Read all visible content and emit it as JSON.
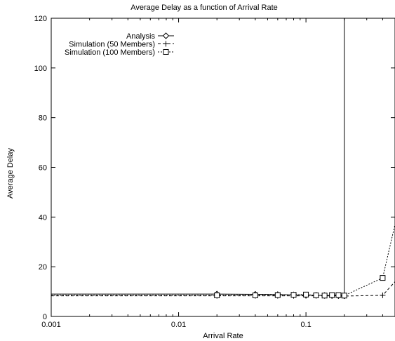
{
  "chart_data": {
    "type": "line",
    "title": "Average Delay as a function of Arrival Rate",
    "xlabel": "Arrival Rate",
    "ylabel": "Average Delay",
    "xscale": "log",
    "xlim": [
      0.001,
      0.5
    ],
    "ylim": [
      0,
      120
    ],
    "xticks": [
      {
        "value": 0.001,
        "label": "0.001"
      },
      {
        "value": 0.01,
        "label": "0.01"
      },
      {
        "value": 0.1,
        "label": "0.1"
      }
    ],
    "yticks": [
      {
        "value": 0,
        "label": "0"
      },
      {
        "value": 20,
        "label": "20"
      },
      {
        "value": 40,
        "label": "40"
      },
      {
        "value": 60,
        "label": "60"
      },
      {
        "value": 80,
        "label": "80"
      },
      {
        "value": 100,
        "label": "100"
      },
      {
        "value": 120,
        "label": "120"
      }
    ],
    "grid": false,
    "legend_position": "top-left",
    "series": [
      {
        "name": "Analysis",
        "line_style": "solid",
        "marker": "diamond",
        "x": [
          0.001,
          0.02,
          0.04,
          0.06,
          0.08,
          0.1,
          0.12,
          0.14,
          0.16,
          0.18,
          0.2,
          0.2
        ],
        "y": [
          9.0,
          9.0,
          8.9,
          8.8,
          8.7,
          8.6,
          8.5,
          8.45,
          8.4,
          8.35,
          8.3,
          120
        ],
        "markers_at": [
          1,
          2,
          3,
          4,
          5,
          6,
          7,
          8,
          9,
          10
        ]
      },
      {
        "name": "Simulation (50 Members)",
        "line_style": "dashed",
        "marker": "plus",
        "x": [
          0.001,
          0.02,
          0.04,
          0.06,
          0.08,
          0.1,
          0.12,
          0.14,
          0.16,
          0.18,
          0.2,
          0.4,
          0.5
        ],
        "y": [
          8.3,
          8.3,
          8.3,
          8.3,
          8.3,
          8.3,
          8.3,
          8.3,
          8.3,
          8.3,
          8.2,
          8.5,
          14
        ],
        "markers_at": [
          1,
          2,
          3,
          4,
          5,
          6,
          7,
          8,
          9,
          10,
          11
        ]
      },
      {
        "name": "Simulation (100 Members)",
        "line_style": "dotted",
        "marker": "square",
        "x": [
          0.001,
          0.02,
          0.04,
          0.06,
          0.08,
          0.1,
          0.12,
          0.14,
          0.16,
          0.18,
          0.2,
          0.4,
          0.5
        ],
        "y": [
          8.5,
          8.5,
          8.5,
          8.6,
          8.7,
          8.8,
          8.5,
          8.4,
          8.6,
          8.6,
          8.4,
          15.5,
          37
        ],
        "markers_at": [
          1,
          2,
          3,
          4,
          5,
          6,
          7,
          8,
          9,
          10,
          11
        ]
      }
    ]
  }
}
